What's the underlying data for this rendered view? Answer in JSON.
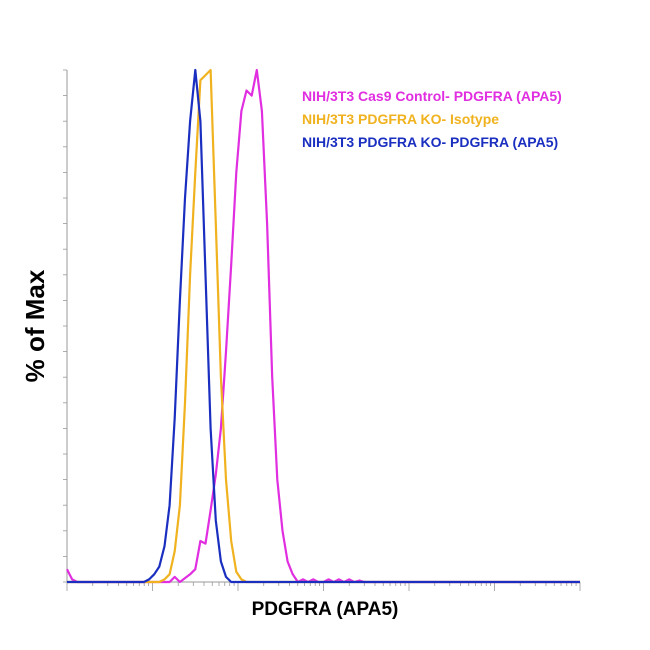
{
  "chart_data": {
    "type": "line",
    "title": "",
    "xlabel": "PDGFRA (APA5)",
    "ylabel": "% of Max",
    "xscale": "log",
    "xlim": [
      0,
      1
    ],
    "ylim": [
      0,
      100
    ],
    "grid": false,
    "legend_position": "top-right",
    "series": [
      {
        "name": "NIH/3T3 Cas9 Control- PDGFRA (APA5)",
        "color": "#e02ee0",
        "x": [
          0.0,
          0.01,
          0.02,
          0.15,
          0.2,
          0.21,
          0.22,
          0.24,
          0.25,
          0.26,
          0.27,
          0.28,
          0.29,
          0.3,
          0.31,
          0.32,
          0.33,
          0.34,
          0.35,
          0.36,
          0.37,
          0.38,
          0.39,
          0.4,
          0.41,
          0.42,
          0.43,
          0.44,
          0.45,
          0.46,
          0.47,
          0.48,
          0.49,
          0.5,
          0.51,
          0.52,
          0.53,
          0.54,
          0.55,
          0.56,
          0.57,
          0.58,
          0.59,
          0.6,
          0.61,
          0.62,
          0.63,
          0.64,
          0.65,
          0.66,
          0.67,
          0.68,
          0.69,
          0.7,
          1.0
        ],
        "y": [
          2.5,
          0.5,
          0,
          0,
          0,
          1,
          0,
          1.5,
          2.5,
          8,
          7.5,
          14,
          21,
          30,
          45,
          62,
          80,
          92,
          96,
          95,
          100,
          92,
          70,
          40,
          20,
          10,
          4,
          1.5,
          0,
          0.5,
          0,
          0.5,
          0,
          0,
          0.5,
          0,
          0.5,
          0,
          0.5,
          0,
          0.3,
          0,
          0,
          0,
          0,
          0,
          0,
          0,
          0,
          0,
          0,
          0,
          0,
          0,
          0
        ]
      },
      {
        "name": "NIH/3T3 PDGFRA KO- Isotype",
        "color": "#f0b21e",
        "x": [
          0.0,
          0.18,
          0.19,
          0.2,
          0.21,
          0.22,
          0.23,
          0.24,
          0.25,
          0.26,
          0.27,
          0.28,
          0.29,
          0.3,
          0.31,
          0.32,
          0.33,
          0.34,
          0.35,
          0.36,
          0.37,
          0.4,
          1.0
        ],
        "y": [
          0,
          0,
          0.5,
          1.5,
          6,
          15,
          35,
          60,
          80,
          98,
          99,
          100,
          70,
          40,
          20,
          8,
          2,
          0.5,
          0,
          0,
          0,
          0,
          0
        ]
      },
      {
        "name": "NIH/3T3 PDGFRA KO- PDGFRA (APA5)",
        "color": "#1a2fc0",
        "x": [
          0.0,
          0.15,
          0.16,
          0.17,
          0.18,
          0.19,
          0.2,
          0.21,
          0.22,
          0.23,
          0.24,
          0.25,
          0.26,
          0.27,
          0.28,
          0.29,
          0.3,
          0.31,
          0.32,
          0.33,
          0.34,
          0.35,
          1.0
        ],
        "y": [
          0,
          0,
          0.5,
          1.5,
          3,
          7,
          15,
          32,
          55,
          75,
          90,
          100,
          90,
          60,
          30,
          12,
          4,
          1,
          0,
          0,
          0,
          0,
          0
        ]
      }
    ]
  }
}
